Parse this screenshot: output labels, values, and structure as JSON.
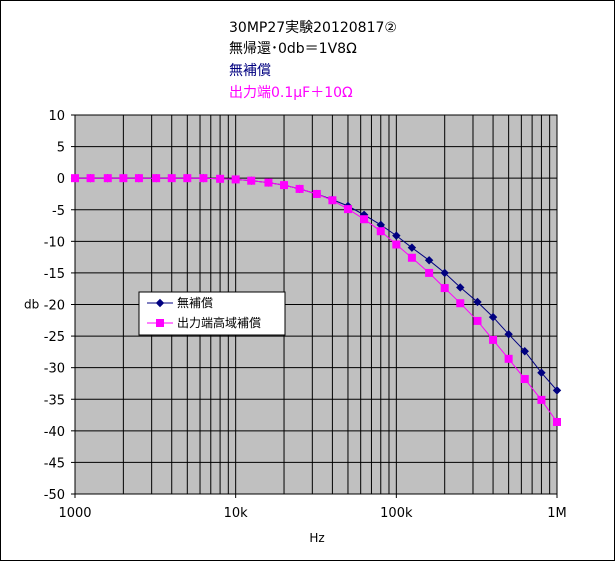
{
  "chart_data": {
    "type": "line",
    "title_lines": [
      {
        "text": "30MP27実験20120817②",
        "color": "#000000"
      },
      {
        "text": "無帰還･0db＝1V8Ω",
        "color": "#000000"
      },
      {
        "text": "無補償",
        "color": "#000080"
      },
      {
        "text": "出力端0.1μF＋10Ω",
        "color": "#FF00FF"
      }
    ],
    "xlabel": "Hz",
    "ylabel": "db",
    "xscale": "log",
    "xlim": [
      1000,
      1000000
    ],
    "ylim": [
      -50,
      10
    ],
    "x_tick_labels": [
      "1000",
      "10k",
      "100k",
      "1M"
    ],
    "y_ticks": [
      10,
      5,
      0,
      -5,
      -10,
      -15,
      -20,
      -25,
      -30,
      -35,
      -40,
      -45,
      -50
    ],
    "grid": true,
    "plot_background": "#C0C0C0",
    "legend_position": "middle-left",
    "x": [
      1000,
      1250,
      1600,
      2000,
      2500,
      3200,
      4000,
      5000,
      6300,
      8000,
      10000,
      12500,
      16000,
      20000,
      25000,
      32000,
      40000,
      50000,
      63000,
      80000,
      100000,
      125000,
      160000,
      200000,
      250000,
      320000,
      400000,
      500000,
      630000,
      800000,
      1000000
    ],
    "series": [
      {
        "name": "無補償",
        "color": "#000080",
        "marker": "diamond",
        "values": [
          0,
          0,
          0,
          0,
          0,
          0,
          0,
          0,
          0,
          -0.1,
          -0.2,
          -0.4,
          -0.7,
          -1.1,
          -1.7,
          -2.5,
          -3.4,
          -4.4,
          -5.8,
          -7.4,
          -9.1,
          -11.0,
          -13.0,
          -15.0,
          -17.3,
          -19.6,
          -22.0,
          -24.7,
          -27.4,
          -30.8,
          -33.6
        ]
      },
      {
        "name": "出力端高域補償",
        "color": "#FF00FF",
        "marker": "square",
        "values": [
          0,
          0,
          0,
          0,
          0,
          0,
          0,
          0,
          0,
          -0.1,
          -0.2,
          -0.4,
          -0.7,
          -1.1,
          -1.7,
          -2.5,
          -3.5,
          -4.9,
          -6.5,
          -8.4,
          -10.5,
          -12.6,
          -15.0,
          -17.4,
          -19.8,
          -22.6,
          -25.6,
          -28.6,
          -31.8,
          -35.1,
          -38.6
        ]
      }
    ]
  }
}
